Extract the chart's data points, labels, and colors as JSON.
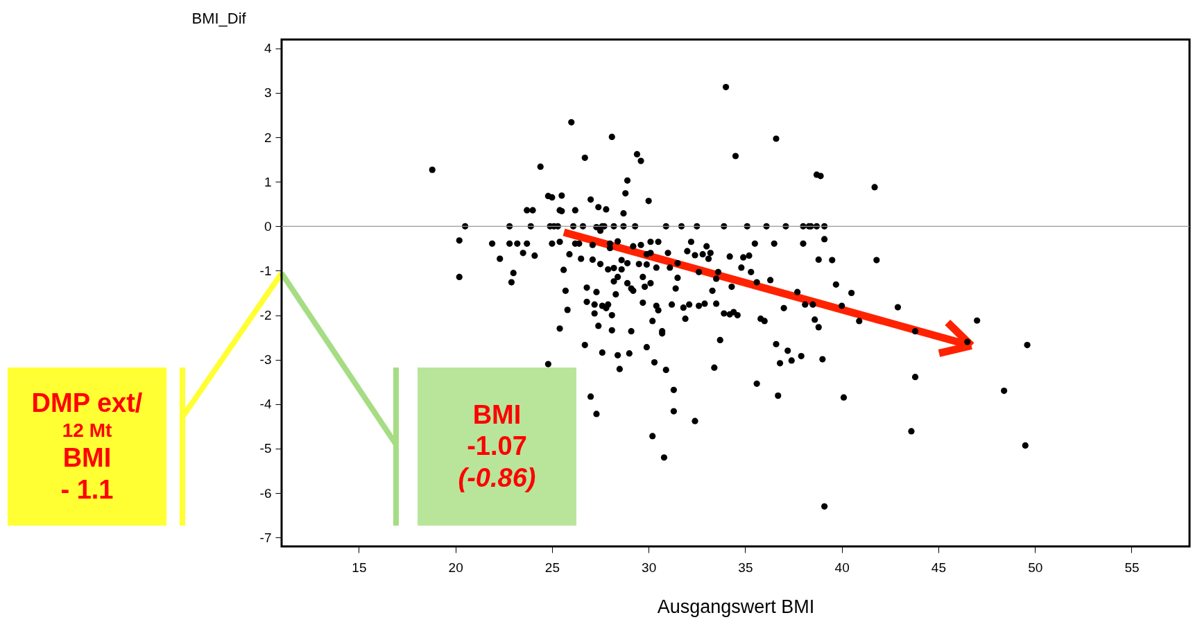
{
  "chart_data": {
    "type": "scatter",
    "xlabel": "Ausgangswert BMI",
    "ylabel": "BMI_Dif",
    "x": [
      18.8,
      20.2,
      20.2,
      20.5,
      21.9,
      22.3,
      22.8,
      22.9,
      23.0,
      22.8,
      23.2,
      23.5,
      23.7,
      24.0,
      23.9,
      23.7,
      24.1,
      24.4,
      24.8,
      24.8,
      24.9,
      25.0,
      25.0,
      25.1,
      25.3,
      25.4,
      25.4,
      25.5,
      25.4,
      25.5,
      25.6,
      25.7,
      25.8,
      25.9,
      26.0,
      26.1,
      26.2,
      26.2,
      26.4,
      26.5,
      26.6,
      26.7,
      26.7,
      26.8,
      26.8,
      27.0,
      27.0,
      27.1,
      27.1,
      27.2,
      27.2,
      27.3,
      27.3,
      27.3,
      27.4,
      27.4,
      27.5,
      27.5,
      27.6,
      27.6,
      27.6,
      27.7,
      27.8,
      27.8,
      27.9,
      27.9,
      28.0,
      28.0,
      28.1,
      28.1,
      28.1,
      28.2,
      28.2,
      28.2,
      28.3,
      28.4,
      28.4,
      28.4,
      28.5,
      28.6,
      28.6,
      28.7,
      28.7,
      28.8,
      28.9,
      28.9,
      28.9,
      29.0,
      29.1,
      29.1,
      29.2,
      29.2,
      29.3,
      29.4,
      29.5,
      29.6,
      29.6,
      29.7,
      29.7,
      29.8,
      29.9,
      29.9,
      29.9,
      30.0,
      30.1,
      30.1,
      30.1,
      30.2,
      30.2,
      30.3,
      30.4,
      30.4,
      30.5,
      30.5,
      30.7,
      30.7,
      30.8,
      30.9,
      30.9,
      31.0,
      31.1,
      31.2,
      31.3,
      31.3,
      31.4,
      31.5,
      31.5,
      31.7,
      31.8,
      31.9,
      32.0,
      32.1,
      32.2,
      32.4,
      32.4,
      32.5,
      32.6,
      32.6,
      32.8,
      32.9,
      33.0,
      33.1,
      33.2,
      33.3,
      33.4,
      33.5,
      33.5,
      33.6,
      33.7,
      33.9,
      33.9,
      34.0,
      34.2,
      34.2,
      34.3,
      34.4,
      34.5,
      34.6,
      34.8,
      34.9,
      35.1,
      35.2,
      35.3,
      35.5,
      35.6,
      35.6,
      35.8,
      36.0,
      36.1,
      36.3,
      36.5,
      36.6,
      36.6,
      36.7,
      36.8,
      37.0,
      37.1,
      37.2,
      37.4,
      37.7,
      37.9,
      38.0,
      38.0,
      38.1,
      38.3,
      38.4,
      38.5,
      38.6,
      38.7,
      38.7,
      38.8,
      38.8,
      38.9,
      39.0,
      39.1,
      39.1,
      39.1,
      39.5,
      39.7,
      40.0,
      40.1,
      40.5,
      40.9,
      41.7,
      41.8,
      42.9,
      43.6,
      43.8,
      43.8,
      46.5,
      47.0,
      48.4,
      49.6,
      49.5
    ],
    "values": [
      1.27,
      -0.32,
      -1.14,
      0,
      -0.39,
      -0.73,
      0,
      -1.26,
      -1.05,
      -0.39,
      -0.39,
      -0.6,
      0.36,
      0.36,
      0,
      -0.39,
      -0.66,
      1.34,
      -3.1,
      0.68,
      0,
      -0.39,
      0.65,
      0,
      0,
      -0.35,
      0.36,
      0.69,
      -2.3,
      0.34,
      -0.98,
      -1.45,
      -1.88,
      -0.63,
      2.34,
      0,
      0.36,
      -0.39,
      -0.39,
      -0.73,
      0,
      1.54,
      -2.67,
      -1.38,
      -1.7,
      -3.83,
      0.6,
      -0.42,
      -0.75,
      -1.76,
      -1.96,
      -4.22,
      -1.48,
      -0.02,
      -2.24,
      0.43,
      -0.85,
      -0.1,
      0,
      -1.79,
      -2.84,
      0,
      -1.84,
      0.38,
      -1.76,
      -0.97,
      -0.39,
      -0.49,
      -2.0,
      -2.34,
      2.01,
      0,
      -0.94,
      -1.24,
      -1.53,
      -1.14,
      -0.34,
      -2.9,
      -3.21,
      -0.76,
      -0.97,
      0,
      0.29,
      0.74,
      1.03,
      -0.83,
      -1.28,
      -2.86,
      -1.4,
      -2.36,
      -0.45,
      -1.45,
      0,
      1.62,
      -0.85,
      -0.42,
      1.47,
      -1.72,
      -1.14,
      -1.36,
      -0.86,
      -2.72,
      -0.63,
      0.57,
      -0.35,
      -1.28,
      -0.6,
      -2.13,
      -4.72,
      -3.06,
      -1.79,
      -0.93,
      -1.89,
      -0.35,
      -2.36,
      -2.41,
      -5.2,
      0,
      -3.23,
      -0.6,
      -0.93,
      -1.76,
      -3.68,
      -4.16,
      -1.4,
      -1.16,
      -0.83,
      0,
      -1.83,
      -2.08,
      -0.56,
      -1.76,
      -0.35,
      -0.65,
      -4.38,
      0,
      -1.03,
      -1.79,
      -0.63,
      -1.74,
      -0.45,
      -0.73,
      -0.6,
      -1.45,
      -3.18,
      -1.74,
      -1.18,
      -1.03,
      -2.56,
      -1.96,
      0,
      3.13,
      -1.98,
      -0.68,
      -1.36,
      -1.93,
      1.58,
      -2.0,
      -0.93,
      -0.7,
      0,
      -0.66,
      -1.03,
      -0.39,
      -1.26,
      -3.54,
      -2.08,
      -2.13,
      0,
      -1.21,
      -0.39,
      -2.65,
      1.97,
      -3.81,
      -3.08,
      -1.84,
      0,
      -2.8,
      -3.02,
      -1.48,
      -2.92,
      -0.39,
      0,
      -1.76,
      0,
      0,
      -1.76,
      -2.1,
      1.16,
      0,
      -0.75,
      -2.27,
      1.13,
      -2.99,
      -6.3,
      -0.29,
      0,
      -0.76,
      -1.31,
      -1.79,
      -3.85,
      -1.5,
      -2.13,
      0.88,
      -0.76,
      -1.82,
      -4.61,
      -2.36,
      -3.39,
      -2.6,
      -2.12,
      -3.7,
      -2.67,
      -4.93
    ],
    "color": "#000000",
    "marker": "circle",
    "xlim": [
      11,
      58
    ],
    "xticks": [
      15,
      20,
      25,
      30,
      35,
      40,
      45,
      50,
      55
    ],
    "ylim": [
      -7.2,
      4.2
    ],
    "yticks": [
      -7,
      -6,
      -5,
      -4,
      -3,
      -2,
      -1,
      0,
      1,
      2,
      3,
      4
    ],
    "ref_lines": [
      {
        "axis": "y",
        "value": 0,
        "color": "#999999"
      }
    ],
    "annotations": [
      "DMP ext/\n12 Mt\nBMI\n- 1.1",
      "BMI\n-1.07\n(-0.86)"
    ]
  }
}
